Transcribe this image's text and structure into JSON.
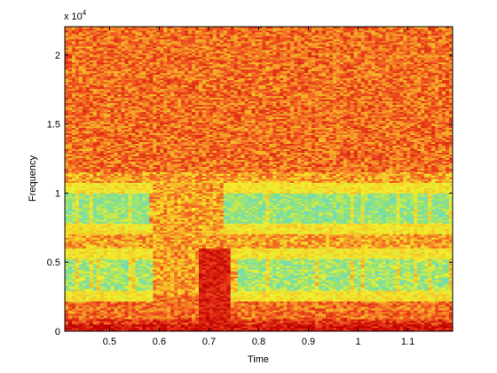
{
  "chart_data": {
    "type": "heatmap",
    "title": "",
    "xlabel": "Time",
    "ylabel": "Frequency",
    "y_multiplier": "x 10",
    "y_multiplier_exponent": "4",
    "xlim": [
      0.41,
      1.19
    ],
    "ylim": [
      0,
      22050
    ],
    "x_ticks": [
      0.5,
      0.6,
      0.7,
      0.8,
      0.9,
      1,
      1.1
    ],
    "x_tick_labels": [
      "0.5",
      "0.6",
      "0.7",
      "0.8",
      "0.9",
      "1",
      "1.1"
    ],
    "y_ticks": [
      0,
      5000,
      10000,
      15000,
      20000
    ],
    "y_tick_labels": [
      "0",
      "0.5",
      "1",
      "1.5",
      "2"
    ],
    "colormap": "jet",
    "grid": false,
    "colors": {
      "dark_red": "#c00000",
      "red": "#ee2b17",
      "orange": "#f5821f",
      "yellow": "#f4f02a",
      "green": "#8ee17a",
      "cyan": "#5ed8e2",
      "blue": "#1f6fd0"
    },
    "features": [
      {
        "description": "low-energy band",
        "freq_range": [
          7800,
          10000
        ],
        "time_segments": [
          [
            0.41,
            0.58
          ],
          [
            0.73,
            1.19
          ]
        ]
      },
      {
        "description": "low-energy band",
        "freq_range": [
          3000,
          5200
        ],
        "time_segments": [
          [
            0.41,
            0.59
          ],
          [
            0.76,
            1.19
          ]
        ]
      },
      {
        "description": "high-energy onset",
        "freq_range": [
          0,
          6000
        ],
        "time_range": [
          0.68,
          0.74
        ]
      }
    ]
  }
}
